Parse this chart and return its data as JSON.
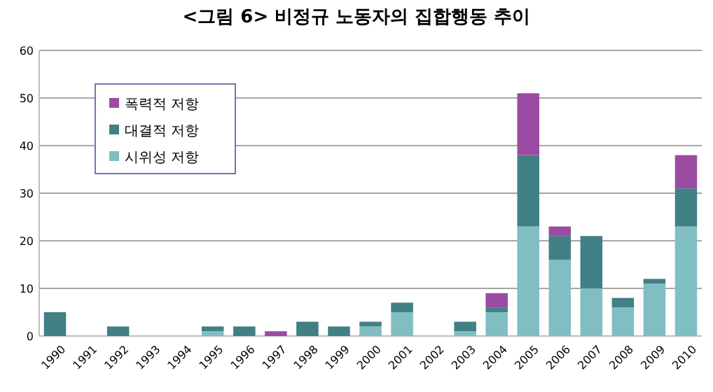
{
  "chart_data": {
    "type": "bar",
    "title": "<그림 6> 비정규 노동자의 집합행동 추이",
    "stacked": true,
    "categories": [
      "1990",
      "1991",
      "1992",
      "1993",
      "1994",
      "1995",
      "1996",
      "1997",
      "1998",
      "1999",
      "2000",
      "2001",
      "2002",
      "2003",
      "2004",
      "2005",
      "2006",
      "2007",
      "2008",
      "2009",
      "2010"
    ],
    "series": [
      {
        "name": "시위성 저항",
        "color": "#80bec1",
        "values": [
          0,
          0,
          0,
          0,
          0,
          1,
          0,
          0,
          0,
          0,
          2,
          5,
          0,
          1,
          5,
          23,
          16,
          10,
          6,
          11,
          23
        ]
      },
      {
        "name": "대결적 저항",
        "color": "#418084",
        "values": [
          5,
          0,
          2,
          0,
          0,
          1,
          2,
          0,
          3,
          2,
          1,
          2,
          0,
          2,
          1,
          15,
          5,
          11,
          2,
          1,
          8
        ]
      },
      {
        "name": "폭력적 저항",
        "color": "#9c4ba3",
        "values": [
          0,
          0,
          0,
          0,
          0,
          0,
          0,
          1,
          0,
          0,
          0,
          0,
          0,
          0,
          3,
          13,
          2,
          0,
          0,
          0,
          7
        ]
      }
    ],
    "ylim": [
      0,
      60
    ],
    "yticks": [
      0,
      10,
      20,
      30,
      40,
      50,
      60
    ],
    "grid": "y",
    "legend": "top left"
  }
}
